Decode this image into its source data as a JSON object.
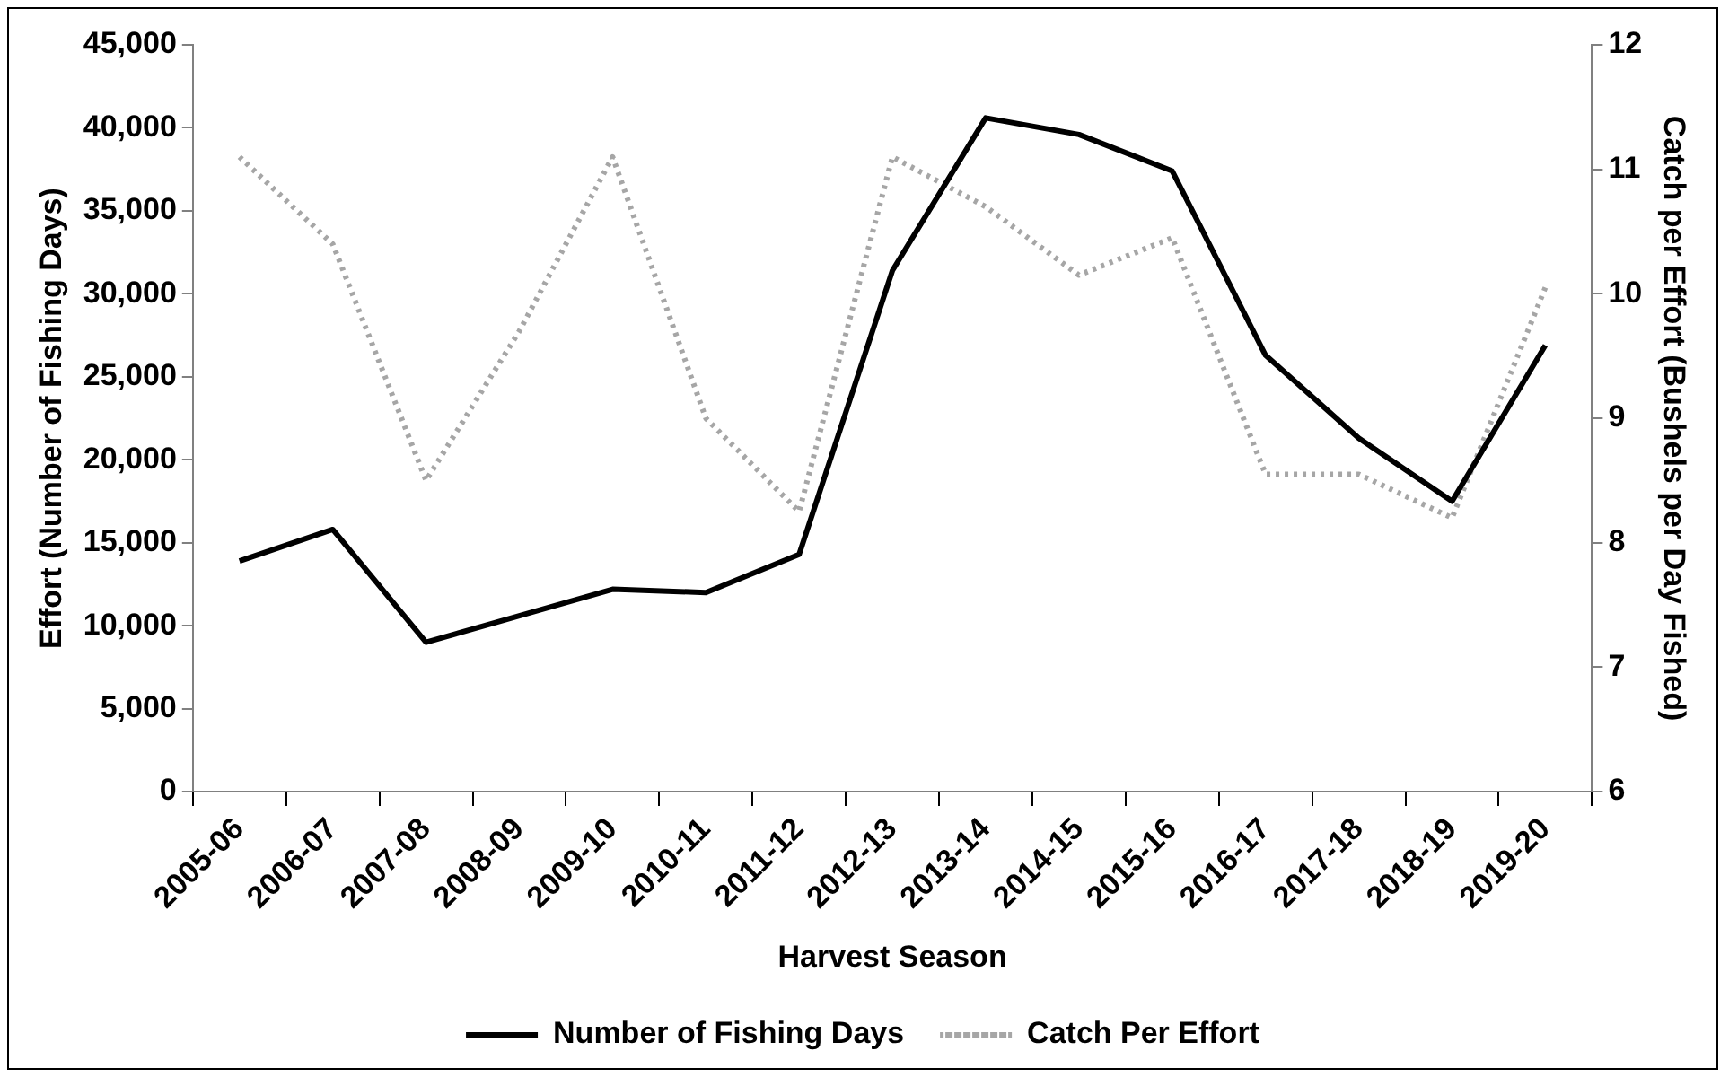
{
  "chart_data": {
    "type": "line",
    "xlabel": "Harvest Season",
    "ylabel": "Effort (Number of Fishing Days)",
    "y2label": "Catch per Effort (Bushels per Day Fished)",
    "categories": [
      "2005-06",
      "2006-07",
      "2007-08",
      "2008-09",
      "2009-10",
      "2010-11",
      "2011-12",
      "2012-13",
      "2013-14",
      "2014-15",
      "2015-16",
      "2016-17",
      "2017-18",
      "2018-19",
      "2019-20"
    ],
    "series": [
      {
        "name": "Number of Fishing Days",
        "color": "#000000",
        "line_style": "solid",
        "values": [
          13900,
          15800,
          9000,
          10600,
          12200,
          12000,
          14300,
          31400,
          40600,
          39600,
          37400,
          26300,
          21300,
          17500,
          26900
        ]
      },
      {
        "name": "Catch Per Effort",
        "color": "#a6a6a6",
        "line_style": "dotted",
        "axis": "y2",
        "values": [
          11.1,
          10.4,
          8.5,
          9.7,
          11.1,
          9.0,
          8.25,
          11.1,
          10.7,
          10.15,
          10.45,
          8.55,
          8.55,
          8.2,
          10.05
        ]
      }
    ],
    "ylim": [
      0,
      45000
    ],
    "yticks": [
      {
        "value": 0,
        "label": "0"
      },
      {
        "value": 5000,
        "label": "5,000"
      },
      {
        "value": 10000,
        "label": "10,000"
      },
      {
        "value": 15000,
        "label": "15,000"
      },
      {
        "value": 20000,
        "label": "20,000"
      },
      {
        "value": 25000,
        "label": "25,000"
      },
      {
        "value": 30000,
        "label": "30,000"
      },
      {
        "value": 35000,
        "label": "35,000"
      },
      {
        "value": 40000,
        "label": "40,000"
      },
      {
        "value": 45000,
        "label": "45,000"
      }
    ],
    "y2lim": [
      6,
      12
    ],
    "y2ticks": [
      6,
      7,
      8,
      9,
      10,
      11,
      12
    ],
    "grid": false,
    "legend": "bottom",
    "marker": "none"
  }
}
